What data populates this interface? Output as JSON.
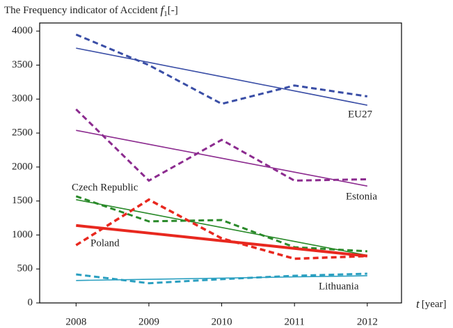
{
  "chart_data": {
    "type": "line",
    "y_label": {
      "text": "The Frequency indicator of Accident",
      "symbol": "f",
      "subscript": "1",
      "unit": "[-]"
    },
    "x_label": {
      "symbol": "t",
      "unit": "[year]"
    },
    "x": [
      2008,
      2009,
      2010,
      2011,
      2012
    ],
    "xlim": [
      2007.5,
      2012.47
    ],
    "xticks": [
      2008,
      2009,
      2010,
      2011,
      2012
    ],
    "ylim": [
      0,
      4120
    ],
    "yticks": [
      0,
      500,
      1000,
      1500,
      2000,
      2500,
      3000,
      3500,
      4000
    ],
    "series": [
      {
        "name": "EU27",
        "color": "#3a4ea6",
        "values": [
          3950,
          3500,
          2930,
          3200,
          3040
        ],
        "trend": [
          3750,
          3540,
          3330,
          3120,
          2910
        ]
      },
      {
        "name": "Estonia",
        "color": "#8c2b8f",
        "values": [
          2850,
          1800,
          2400,
          1800,
          1820
        ],
        "trend": [
          2540,
          2335,
          2130,
          1925,
          1720
        ]
      },
      {
        "name": "Czech Republic",
        "color": "#2a8a2a",
        "values": [
          1570,
          1200,
          1220,
          820,
          760
        ],
        "trend": [
          1520,
          1315,
          1110,
          905,
          700
        ]
      },
      {
        "name": "Poland",
        "color": "#e8281f",
        "values": [
          850,
          1520,
          950,
          650,
          690
        ],
        "trend": [
          1140,
          1028,
          915,
          802,
          690
        ]
      },
      {
        "name": "Lithuania",
        "color": "#2a9fc0",
        "values": [
          420,
          290,
          350,
          400,
          430
        ],
        "trend": [
          330,
          348,
          365,
          383,
          400
        ]
      }
    ]
  }
}
